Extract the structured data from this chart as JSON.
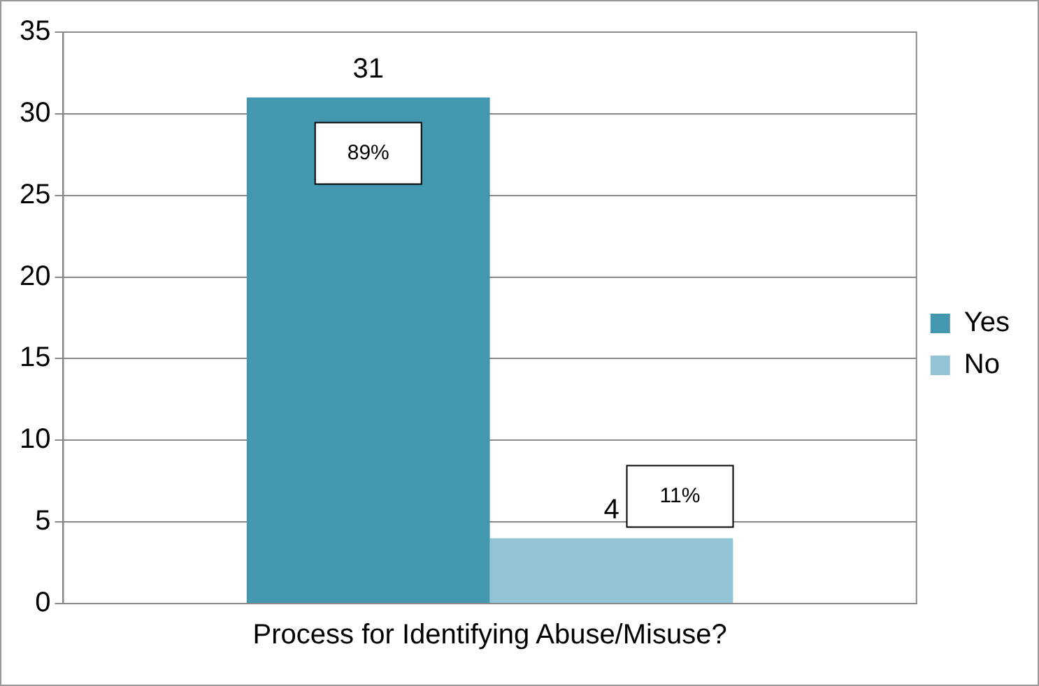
{
  "chart_data": {
    "type": "bar",
    "categories": [
      "Process for Identifying Abuse/Misuse?"
    ],
    "series": [
      {
        "name": "Yes",
        "color": "#4398b0",
        "values": [
          31
        ]
      },
      {
        "name": "No",
        "color": "#93c4d5",
        "values": [
          4
        ]
      }
    ],
    "ylim": [
      0,
      35
    ],
    "yticks": [
      0,
      5,
      10,
      15,
      20,
      25,
      30,
      35
    ],
    "grid": "y",
    "legend": "right",
    "data_labels": true,
    "annotations": [
      "89%",
      "11%"
    ]
  }
}
